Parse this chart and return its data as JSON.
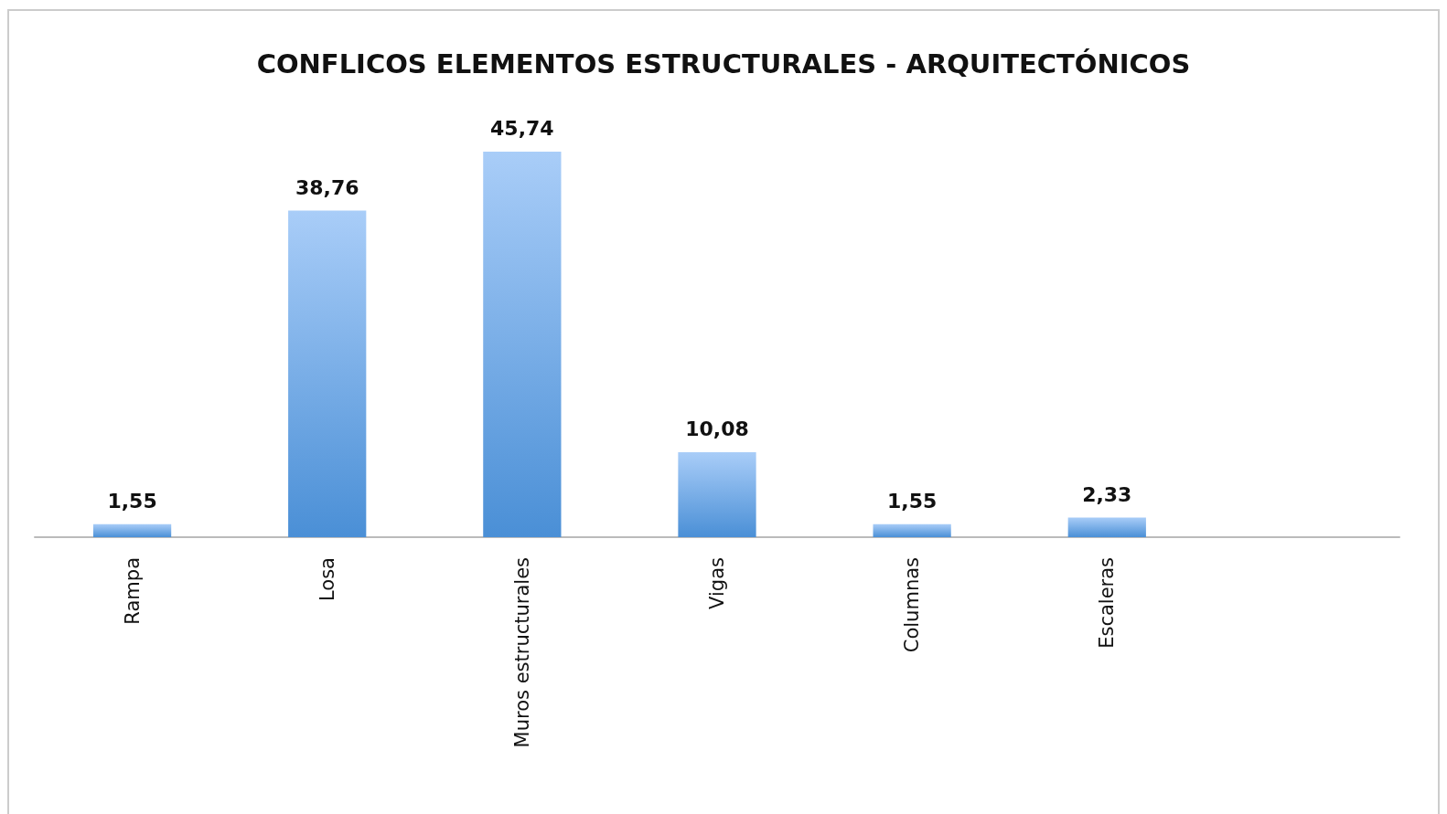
{
  "chart_data": {
    "type": "bar",
    "title": "CONFLICOS ELEMENTOS ESTRUCTURALES - ARQUITECTÓNICOS",
    "categories": [
      "Rampa",
      "Losa",
      "Muros estructurales",
      "Vigas",
      "Columnas",
      "Escaleras",
      null
    ],
    "values": [
      1.55,
      38.76,
      45.74,
      10.08,
      1.55,
      2.33,
      null
    ],
    "value_labels": [
      "1,55",
      "38,76",
      "45,74",
      "10,08",
      "1,55",
      "2,33",
      null
    ],
    "color": "#4a8fd6",
    "relative": false
  }
}
